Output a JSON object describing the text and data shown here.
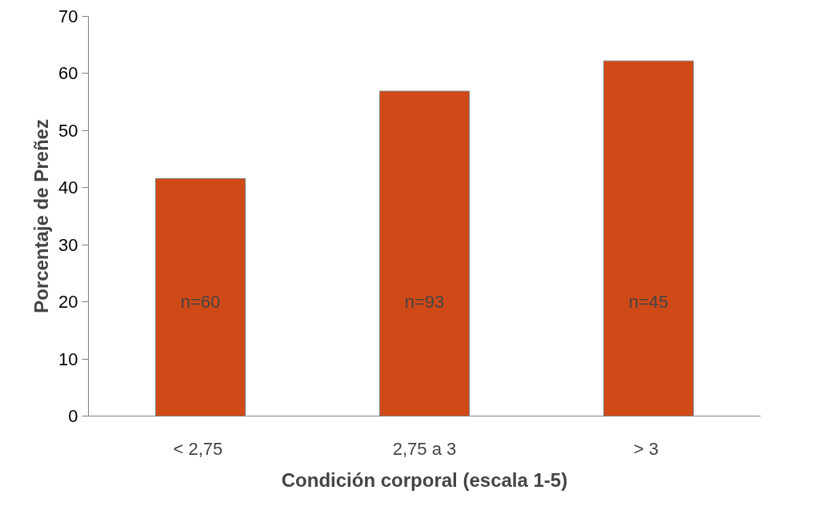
{
  "chart_data": {
    "type": "bar",
    "xlabel": "Condición corporal (escala 1-5)",
    "ylabel": "Porcentaje de Preñez",
    "categories": [
      "<  2,75",
      "2,75 a 3",
      ">  3"
    ],
    "values": [
      41.6,
      56.9,
      62.2
    ],
    "color": "#d04a18",
    "ylim": [
      0,
      70
    ],
    "yticks": [
      0,
      10,
      20,
      30,
      40,
      50,
      60,
      70
    ],
    "grid": false,
    "annotations": [
      "n=60",
      "n=93",
      "n=45"
    ]
  }
}
